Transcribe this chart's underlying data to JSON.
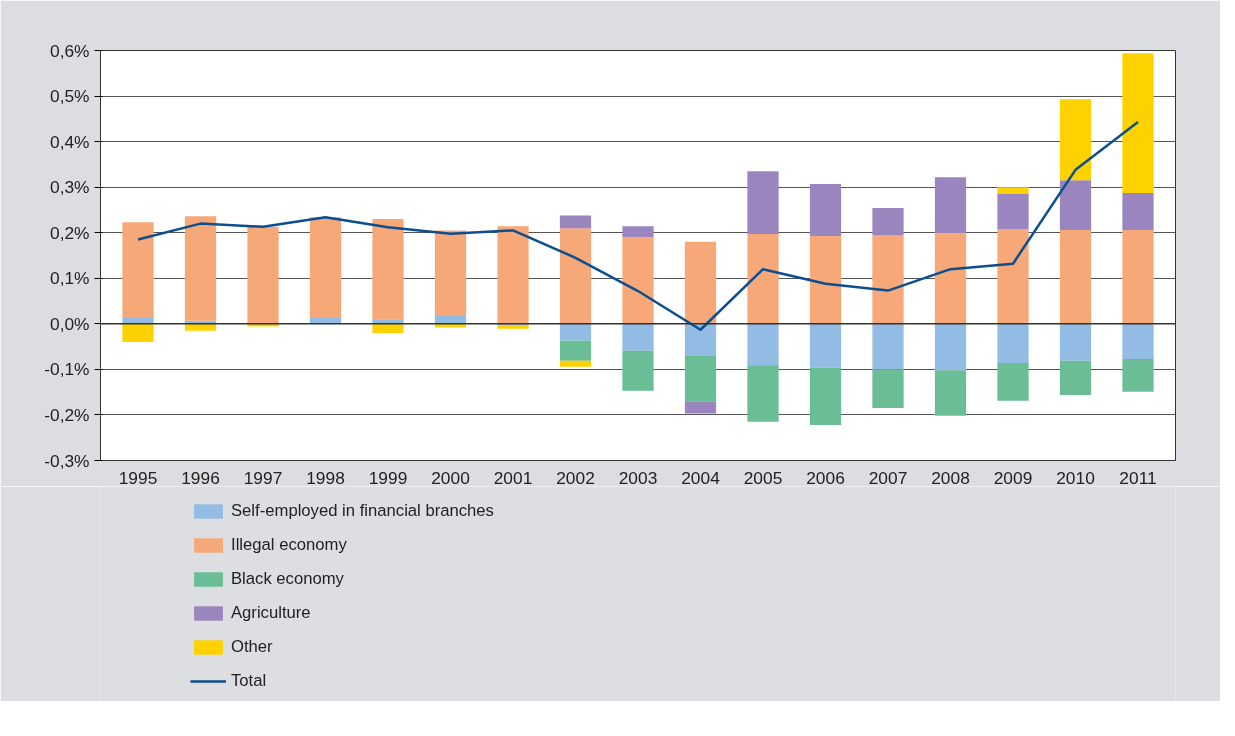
{
  "chart_data": {
    "type": "bar",
    "stacked": true,
    "categories": [
      "1995",
      "1996",
      "1997",
      "1998",
      "1999",
      "2000",
      "2001",
      "2002",
      "2003",
      "2004",
      "2005",
      "2006",
      "2007",
      "2008",
      "2009",
      "2010",
      "2011"
    ],
    "series": [
      {
        "name": "Self-employed in financial branches",
        "color": "#92bce4",
        "values": [
          0.013,
          0.007,
          0,
          0.013,
          0.01,
          0.017,
          -0.004,
          -0.037,
          -0.059,
          -0.069,
          -0.091,
          -0.096,
          -0.1,
          -0.102,
          -0.086,
          -0.081,
          -0.077
        ]
      },
      {
        "name": "Illegal economy",
        "color": "#f7a878",
        "values": [
          0.21,
          0.229,
          0.213,
          0.221,
          0.22,
          0.188,
          0.214,
          0.21,
          0.19,
          0.18,
          0.197,
          0.193,
          0.195,
          0.199,
          0.208,
          0.206,
          0.206
        ]
      },
      {
        "name": "Black economy",
        "color": "#6abd94",
        "values": [
          0,
          0,
          0,
          0,
          0,
          0,
          0,
          -0.044,
          -0.088,
          -0.101,
          -0.124,
          -0.126,
          -0.085,
          -0.1,
          -0.083,
          -0.075,
          -0.072
        ]
      },
      {
        "name": "Agriculture",
        "color": "#9b85bf",
        "values": [
          0,
          0,
          0,
          0,
          0,
          0,
          0,
          0.028,
          0.024,
          -0.027,
          0.138,
          0.114,
          0.059,
          0.123,
          0.077,
          0.109,
          0.081
        ]
      },
      {
        "name": "Other",
        "color": "#fdd200",
        "values": [
          -0.04,
          -0.015,
          -0.006,
          0,
          -0.02,
          -0.008,
          -0.007,
          -0.013,
          0,
          0,
          0,
          0,
          0,
          0,
          0.015,
          0.178,
          0.307
        ]
      },
      {
        "name": "Total",
        "type": "line",
        "color": "#0b4f8f",
        "values": [
          0.185,
          0.22,
          0.213,
          0.234,
          0.212,
          0.198,
          0.205,
          0.145,
          0.072,
          -0.013,
          0.12,
          0.088,
          0.073,
          0.12,
          0.132,
          0.338,
          0.443
        ]
      }
    ],
    "ylim": [
      -0.3,
      0.6
    ],
    "yticks": [
      {
        "value": -0.3,
        "label": "-0,3%"
      },
      {
        "value": -0.2,
        "label": "-0,2%"
      },
      {
        "value": -0.1,
        "label": "-0,1%"
      },
      {
        "value": 0,
        "label": "0,0%"
      },
      {
        "value": 0.1,
        "label": "0,1%"
      },
      {
        "value": 0.2,
        "label": "0,2%"
      },
      {
        "value": 0.3,
        "label": "0,3%"
      },
      {
        "value": 0.4,
        "label": "0,4%"
      },
      {
        "value": 0.5,
        "label": "0,5%"
      },
      {
        "value": 0.6,
        "label": "0,6%"
      }
    ],
    "grid": "y",
    "legend": "bottom"
  }
}
